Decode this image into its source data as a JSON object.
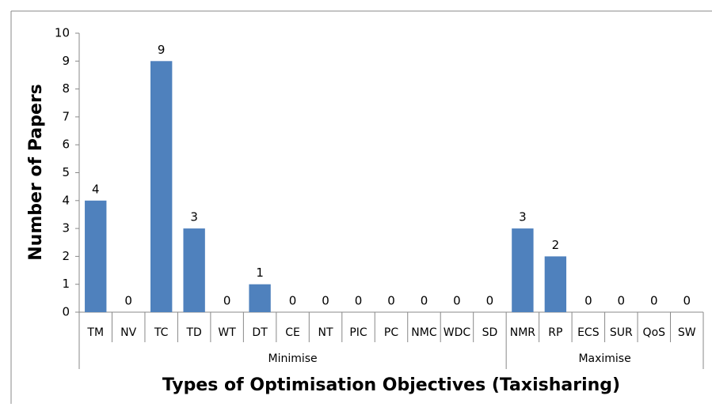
{
  "chart_data": {
    "type": "bar",
    "xlabel": "Types of Optimisation Objectives (Taxisharing)",
    "ylabel": "Number of Papers",
    "groups": [
      {
        "name": "Minimise",
        "categories": [
          "TM",
          "NV",
          "TC",
          "TD",
          "WT",
          "DT",
          "CE",
          "NT",
          "PIC",
          "PC",
          "NMC",
          "WDC",
          "SD"
        ]
      },
      {
        "name": "Maximise",
        "categories": [
          "NMR",
          "RP",
          "ECS",
          "SUR",
          "QoS",
          "SW"
        ]
      }
    ],
    "values": [
      4,
      0,
      9,
      3,
      0,
      1,
      0,
      0,
      0,
      0,
      0,
      0,
      0,
      3,
      2,
      0,
      0,
      0,
      0
    ],
    "color": "#4f81bd",
    "ylim": [
      0,
      10
    ],
    "yticks": [
      0,
      1,
      2,
      3,
      4,
      5,
      6,
      7,
      8,
      9,
      10
    ],
    "grid": false
  }
}
